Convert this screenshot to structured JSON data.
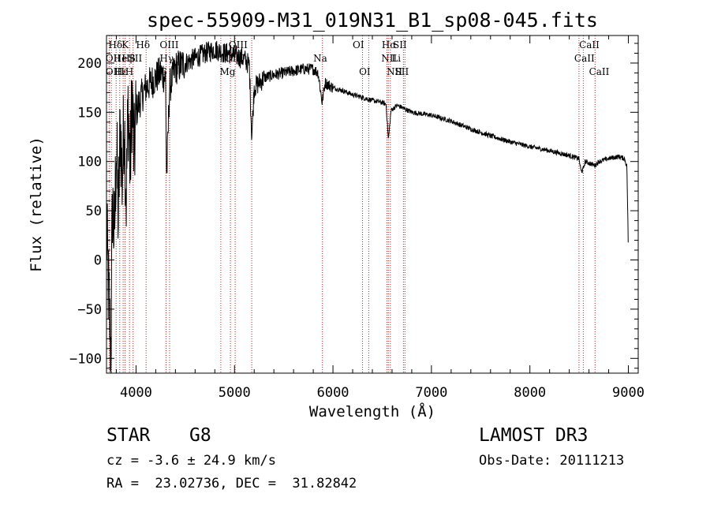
{
  "chart_data": {
    "type": "line",
    "title": "spec-55909-M31_019N31_B1_sp08-045.fits",
    "xlabel": "Wavelength (Å)",
    "ylabel": "Flux (relative)",
    "xlim": [
      3700,
      9100
    ],
    "ylim": [
      -115,
      228
    ],
    "xticks": [
      4000,
      5000,
      6000,
      7000,
      8000,
      9000
    ],
    "yticks": [
      -100,
      -50,
      0,
      50,
      100,
      150,
      200
    ],
    "spectrum_nodes": [
      [
        3700,
        30
      ],
      [
        3720,
        -30
      ],
      [
        3745,
        -95
      ],
      [
        3760,
        60
      ],
      [
        3780,
        20
      ],
      [
        3800,
        120
      ],
      [
        3820,
        40
      ],
      [
        3840,
        140
      ],
      [
        3860,
        80
      ],
      [
        3880,
        150
      ],
      [
        3900,
        60
      ],
      [
        3920,
        160
      ],
      [
        3940,
        90
      ],
      [
        3960,
        170
      ],
      [
        3980,
        100
      ],
      [
        4000,
        150
      ],
      [
        4050,
        165
      ],
      [
        4100,
        175
      ],
      [
        4150,
        180
      ],
      [
        4200,
        185
      ],
      [
        4250,
        190
      ],
      [
        4300,
        185
      ],
      [
        4310,
        80
      ],
      [
        4340,
        175
      ],
      [
        4400,
        195
      ],
      [
        4500,
        200
      ],
      [
        4600,
        205
      ],
      [
        4700,
        210
      ],
      [
        4750,
        212
      ],
      [
        4800,
        214
      ],
      [
        4850,
        212
      ],
      [
        4900,
        210
      ],
      [
        4950,
        210
      ],
      [
        5000,
        208
      ],
      [
        5100,
        204
      ],
      [
        5150,
        198
      ],
      [
        5175,
        125
      ],
      [
        5200,
        175
      ],
      [
        5300,
        185
      ],
      [
        5400,
        188
      ],
      [
        5500,
        190
      ],
      [
        5600,
        192
      ],
      [
        5700,
        194
      ],
      [
        5800,
        194
      ],
      [
        5850,
        190
      ],
      [
        5890,
        160
      ],
      [
        5920,
        180
      ],
      [
        6000,
        175
      ],
      [
        6100,
        172
      ],
      [
        6200,
        168
      ],
      [
        6300,
        165
      ],
      [
        6400,
        162
      ],
      [
        6500,
        160
      ],
      [
        6540,
        158
      ],
      [
        6563,
        122
      ],
      [
        6590,
        152
      ],
      [
        6650,
        157
      ],
      [
        6700,
        155
      ],
      [
        6800,
        150
      ],
      [
        7000,
        147
      ],
      [
        7200,
        141
      ],
      [
        7400,
        133
      ],
      [
        7600,
        126
      ],
      [
        7800,
        120
      ],
      [
        8000,
        115
      ],
      [
        8200,
        111
      ],
      [
        8400,
        106
      ],
      [
        8498,
        103
      ],
      [
        8520,
        90
      ],
      [
        8542,
        92
      ],
      [
        8560,
        100
      ],
      [
        8662,
        96
      ],
      [
        8700,
        100
      ],
      [
        8800,
        103
      ],
      [
        8900,
        105
      ],
      [
        8960,
        103
      ],
      [
        8985,
        95
      ],
      [
        8995,
        40
      ],
      [
        9000,
        0
      ]
    ],
    "emission_lines": [
      {
        "label": "Hδ",
        "x": 3720,
        "row": 0
      },
      {
        "label": "K",
        "x": 3855,
        "row": 0
      },
      {
        "label": "Hδ",
        "x": 4000,
        "row": 0
      },
      {
        "label": "OIII",
        "x": 4240,
        "row": 0
      },
      {
        "label": "OIII",
        "x": 4940,
        "row": 0
      },
      {
        "label": "OI",
        "x": 6200,
        "row": 0
      },
      {
        "label": "Hα",
        "x": 6495,
        "row": 0
      },
      {
        "label": "SII",
        "x": 6608,
        "row": 0
      },
      {
        "label": "CaII",
        "x": 8500,
        "row": 0
      },
      {
        "label": "OII",
        "x": 3690,
        "row": 1
      },
      {
        "label": "He",
        "x": 3770,
        "row": 1
      },
      {
        "label": "Hβ",
        "x": 3855,
        "row": 1
      },
      {
        "label": "SII",
        "x": 3920,
        "row": 1
      },
      {
        "label": "Hγ",
        "x": 4240,
        "row": 1
      },
      {
        "label": "OIII",
        "x": 4900,
        "row": 1
      },
      {
        "label": "Na",
        "x": 5800,
        "row": 1
      },
      {
        "label": "NII",
        "x": 6490,
        "row": 1
      },
      {
        "label": "Li",
        "x": 6595,
        "row": 1
      },
      {
        "label": "CaII",
        "x": 8450,
        "row": 1
      },
      {
        "label": "OIII",
        "x": 3690,
        "row": 2
      },
      {
        "label": "Hε",
        "x": 3780,
        "row": 2
      },
      {
        "label": "H",
        "x": 3890,
        "row": 2
      },
      {
        "label": "G",
        "x": 4240,
        "row": 2
      },
      {
        "label": "Mg",
        "x": 4850,
        "row": 2
      },
      {
        "label": "OI",
        "x": 6265,
        "row": 2
      },
      {
        "label": "NII",
        "x": 6545,
        "row": 2
      },
      {
        "label": "SII",
        "x": 6628,
        "row": 2
      },
      {
        "label": "CaII",
        "x": 8600,
        "row": 2
      }
    ],
    "marker_lines_x": [
      3727,
      3750,
      3798,
      3835,
      3869,
      3889,
      3934,
      3970,
      4102,
      4305,
      4341,
      4861,
      4959,
      5007,
      5175,
      5893,
      6300,
      6363,
      6548,
      6563,
      6583,
      6716,
      6731,
      8498,
      8542,
      8662
    ]
  },
  "info": {
    "object_type": "STAR",
    "subclass": "G8",
    "survey": "LAMOST DR3",
    "velocity": "cz = -3.6 ± 24.9 km/s",
    "obs_date": "Obs-Date: 20111213",
    "coords": "RA =  23.02736, DEC =  31.82842"
  }
}
